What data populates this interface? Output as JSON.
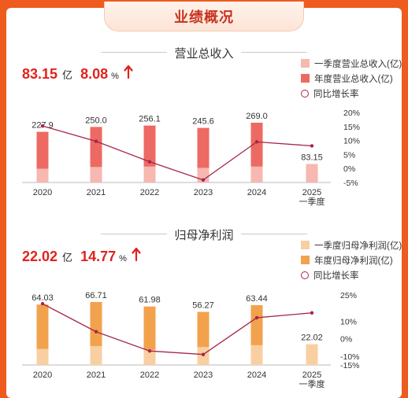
{
  "banner_title": "业绩概况",
  "colors": {
    "rev_annual": "#ec6a63",
    "rev_q1": "#f6b8b0",
    "np_annual": "#f2a24c",
    "np_q1": "#f9cfa2",
    "growth_line": "#a6264a",
    "headline": "#e0231c"
  },
  "chart_data": [
    {
      "type": "bar",
      "title": "营业总收入",
      "headline": {
        "value": "83.15",
        "unit": "亿",
        "growth": "8.08",
        "growth_unit": "%",
        "arrow_icon": "up-arrow-icon"
      },
      "legend": [
        "一季度营业总收入(亿)",
        "年度营业总收入(亿)",
        "同比增长率"
      ],
      "categories": [
        "2020",
        "2021",
        "2022",
        "2023",
        "2024",
        "2025\n一季度"
      ],
      "x_labels_line1": [
        "2020",
        "2021",
        "2022",
        "2023",
        "2024",
        "2025"
      ],
      "x_labels_line2": [
        "",
        "",
        "",
        "",
        "",
        "一季度"
      ],
      "series": [
        {
          "name": "年度营业总收入(亿)",
          "values": [
            227.9,
            250.0,
            256.1,
            245.6,
            269.0,
            null
          ]
        },
        {
          "name": "一季度营业总收入(亿)",
          "values": [
            62,
            70,
            72,
            66,
            72,
            83.15
          ]
        },
        {
          "name": "同比增长率",
          "values": [
            15.2,
            9.7,
            2.4,
            -4.1,
            9.5,
            8.08
          ]
        }
      ],
      "data_labels": [
        "227.9",
        "250.0",
        "256.1",
        "245.6",
        "269.0",
        "83.15"
      ],
      "bar_ylim": [
        0,
        400
      ],
      "growth_ylim": [
        -5,
        20
      ],
      "y2_ticks": [
        20,
        15,
        10,
        5,
        0,
        -5
      ],
      "y2_tick_labels": [
        "20%",
        "15%",
        "10%",
        "5%",
        "0%",
        "-5%"
      ]
    },
    {
      "type": "bar",
      "title": "归母净利润",
      "headline": {
        "value": "22.02",
        "unit": "亿",
        "growth": "14.77",
        "growth_unit": "%",
        "arrow_icon": "up-arrow-icon"
      },
      "legend": [
        "一季度归母净利润(亿)",
        "年度归母净利润(亿)",
        "同比增长率"
      ],
      "categories": [
        "2020",
        "2021",
        "2022",
        "2023",
        "2024",
        "2025\n一季度"
      ],
      "x_labels_line1": [
        "2020",
        "2021",
        "2022",
        "2023",
        "2024",
        "2025"
      ],
      "x_labels_line2": [
        "",
        "",
        "",
        "",
        "",
        "一季度"
      ],
      "series": [
        {
          "name": "年度归母净利润(亿)",
          "values": [
            64.03,
            66.71,
            61.98,
            56.27,
            63.44,
            null
          ]
        },
        {
          "name": "一季度归母净利润(亿)",
          "values": [
            17,
            20,
            16,
            19,
            21,
            22.02
          ]
        },
        {
          "name": "同比增长率",
          "values": [
            20,
            4,
            -7,
            -9,
            12,
            14.77
          ]
        }
      ],
      "data_labels": [
        "64.03",
        "66.71",
        "61.98",
        "56.27",
        "63.44",
        "22.02"
      ],
      "bar_ylim": [
        0,
        85
      ],
      "growth_ylim": [
        -15,
        25
      ],
      "y2_ticks": [
        25,
        10,
        0,
        -10,
        -15
      ],
      "y2_tick_labels": [
        "25%",
        "10%",
        "0%",
        "-10%",
        "-15%"
      ]
    }
  ]
}
